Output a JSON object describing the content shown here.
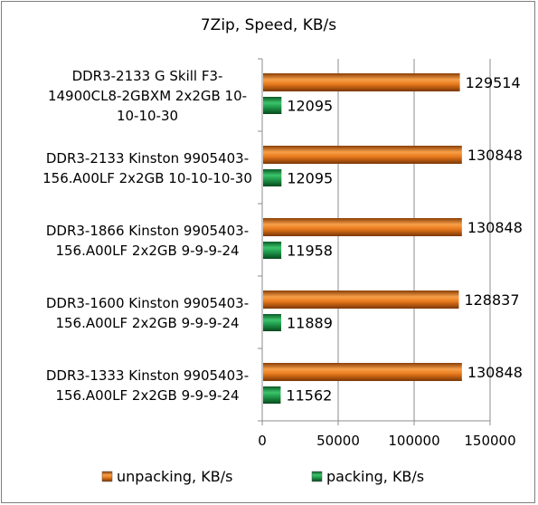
{
  "chart_data": {
    "type": "bar",
    "orientation": "horizontal",
    "title": "7Zip, Speed, KB/s",
    "xlabel": "",
    "ylabel": "",
    "xlim": [
      0,
      150000
    ],
    "x_ticks": [
      "0",
      "50000",
      "100000",
      "150000"
    ],
    "grid": "vertical",
    "legend_position": "bottom",
    "categories": [
      [
        "DDR3-2133 G Skill F3-",
        "14900CL8-2GBXM 2x2GB 10-",
        "10-10-30"
      ],
      [
        "DDR3-2133 Kinston 9905403-",
        "156.A00LF 2x2GB 10-10-10-30"
      ],
      [
        "DDR3-1866 Kinston 9905403-",
        "156.A00LF 2x2GB 9-9-9-24"
      ],
      [
        "DDR3-1600 Kinston 9905403-",
        "156.A00LF 2x2GB 9-9-9-24"
      ],
      [
        "DDR3-1333 Kinston 9905403-",
        "156.A00LF 2x2GB 9-9-9-24"
      ]
    ],
    "series": [
      {
        "name": "unpacking, KB/s",
        "color": "#e87a1c",
        "values": [
          129514,
          130848,
          130848,
          128837,
          130848
        ],
        "labels": [
          "129514",
          "130848",
          "130848",
          "128837",
          "130848"
        ]
      },
      {
        "name": "packing, KB/s",
        "color": "#1f9a4a",
        "values": [
          12095,
          12095,
          11958,
          11889,
          11562
        ],
        "labels": [
          "12095",
          "12095",
          "11958",
          "11889",
          "11562"
        ]
      }
    ]
  }
}
